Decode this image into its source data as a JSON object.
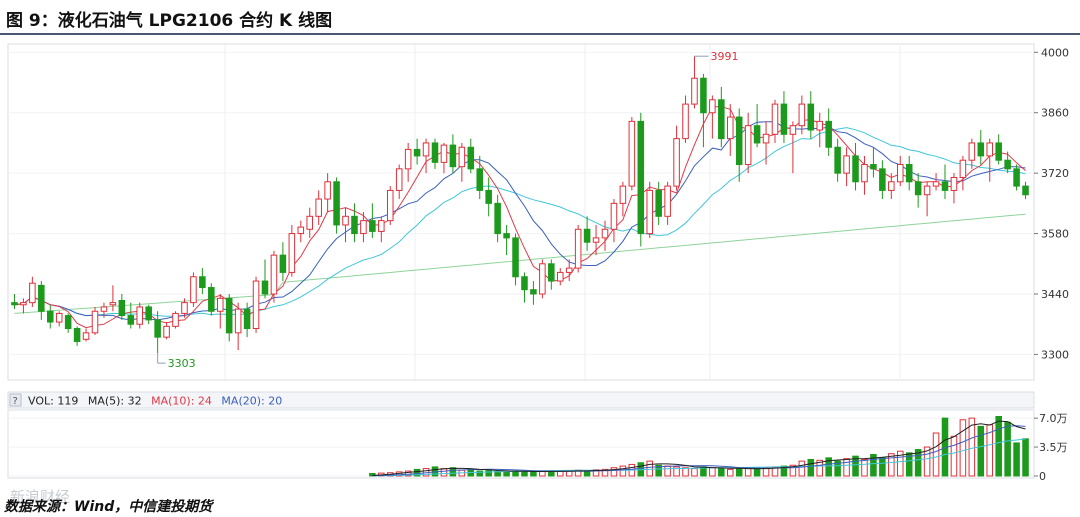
{
  "title": "图 9：液化石油气 LPG2106 合约 K 线图",
  "source": "数据来源：Wind，中信建投期货",
  "watermark": "新浪财经",
  "chart_data": [
    {
      "type": "candlestick",
      "ylim": [
        3250,
        4010
      ],
      "y_ticks": [
        "4000",
        "3860",
        "3720",
        "3580",
        "3440",
        "3300"
      ],
      "annotations": {
        "high_label": "3991",
        "high_value": 3991,
        "low_label": "3303",
        "low_value": 3303
      },
      "colors": {
        "up": "#e0303a",
        "down": "#1d9a1d",
        "ma5": "#e03a48",
        "ma10": "#3b5fc0",
        "ma20": "#3fc6d8",
        "ma60": "#8fd49a"
      },
      "ohlc": [
        [
          3420,
          3440,
          3405,
          3415
        ],
        [
          3415,
          3430,
          3395,
          3420
        ],
        [
          3420,
          3480,
          3410,
          3465
        ],
        [
          3460,
          3470,
          3380,
          3400
        ],
        [
          3400,
          3415,
          3360,
          3375
        ],
        [
          3375,
          3400,
          3365,
          3395
        ],
        [
          3390,
          3395,
          3350,
          3360
        ],
        [
          3360,
          3365,
          3320,
          3330
        ],
        [
          3335,
          3360,
          3330,
          3350
        ],
        [
          3350,
          3410,
          3345,
          3400
        ],
        [
          3400,
          3420,
          3385,
          3410
        ],
        [
          3415,
          3460,
          3400,
          3420
        ],
        [
          3425,
          3440,
          3380,
          3390
        ],
        [
          3390,
          3420,
          3360,
          3370
        ],
        [
          3370,
          3420,
          3360,
          3410
        ],
        [
          3410,
          3415,
          3370,
          3380
        ],
        [
          3380,
          3400,
          3303,
          3340
        ],
        [
          3340,
          3375,
          3335,
          3365
        ],
        [
          3365,
          3400,
          3360,
          3395
        ],
        [
          3395,
          3430,
          3385,
          3420
        ],
        [
          3420,
          3490,
          3410,
          3480
        ],
        [
          3480,
          3500,
          3440,
          3455
        ],
        [
          3455,
          3465,
          3390,
          3400
        ],
        [
          3400,
          3440,
          3360,
          3430
        ],
        [
          3430,
          3440,
          3330,
          3350
        ],
        [
          3350,
          3420,
          3310,
          3405
        ],
        [
          3405,
          3420,
          3340,
          3360
        ],
        [
          3360,
          3480,
          3350,
          3470
        ],
        [
          3470,
          3520,
          3430,
          3440
        ],
        [
          3440,
          3540,
          3420,
          3530
        ],
        [
          3530,
          3560,
          3470,
          3490
        ],
        [
          3490,
          3600,
          3480,
          3580
        ],
        [
          3580,
          3610,
          3560,
          3595
        ],
        [
          3590,
          3640,
          3570,
          3620
        ],
        [
          3620,
          3680,
          3600,
          3660
        ],
        [
          3660,
          3720,
          3630,
          3700
        ],
        [
          3700,
          3710,
          3580,
          3600
        ],
        [
          3600,
          3640,
          3560,
          3620
        ],
        [
          3620,
          3650,
          3560,
          3580
        ],
        [
          3580,
          3630,
          3560,
          3610
        ],
        [
          3610,
          3650,
          3570,
          3585
        ],
        [
          3585,
          3620,
          3560,
          3610
        ],
        [
          3610,
          3690,
          3600,
          3680
        ],
        [
          3680,
          3740,
          3660,
          3730
        ],
        [
          3730,
          3790,
          3700,
          3775
        ],
        [
          3775,
          3800,
          3740,
          3760
        ],
        [
          3760,
          3800,
          3720,
          3790
        ],
        [
          3790,
          3800,
          3730,
          3745
        ],
        [
          3745,
          3790,
          3720,
          3785
        ],
        [
          3785,
          3810,
          3720,
          3735
        ],
        [
          3735,
          3790,
          3700,
          3780
        ],
        [
          3780,
          3800,
          3720,
          3730
        ],
        [
          3730,
          3760,
          3660,
          3680
        ],
        [
          3680,
          3710,
          3620,
          3650
        ],
        [
          3650,
          3670,
          3560,
          3580
        ],
        [
          3580,
          3600,
          3530,
          3570
        ],
        [
          3570,
          3580,
          3460,
          3480
        ],
        [
          3480,
          3490,
          3420,
          3450
        ],
        [
          3450,
          3470,
          3415,
          3440
        ],
        [
          3440,
          3520,
          3430,
          3510
        ],
        [
          3510,
          3520,
          3450,
          3470
        ],
        [
          3470,
          3500,
          3460,
          3490
        ],
        [
          3490,
          3520,
          3470,
          3500
        ],
        [
          3500,
          3600,
          3490,
          3590
        ],
        [
          3590,
          3620,
          3540,
          3560
        ],
        [
          3560,
          3600,
          3530,
          3570
        ],
        [
          3570,
          3610,
          3540,
          3590
        ],
        [
          3590,
          3660,
          3560,
          3650
        ],
        [
          3650,
          3700,
          3620,
          3690
        ],
        [
          3690,
          3850,
          3680,
          3840
        ],
        [
          3840,
          3860,
          3550,
          3580
        ],
        [
          3580,
          3700,
          3570,
          3680
        ],
        [
          3680,
          3700,
          3600,
          3620
        ],
        [
          3620,
          3700,
          3600,
          3690
        ],
        [
          3690,
          3830,
          3680,
          3800
        ],
        [
          3800,
          3900,
          3790,
          3880
        ],
        [
          3880,
          3991,
          3870,
          3940
        ],
        [
          3940,
          3950,
          3780,
          3860
        ],
        [
          3860,
          3900,
          3800,
          3890
        ],
        [
          3890,
          3920,
          3780,
          3800
        ],
        [
          3800,
          3880,
          3760,
          3850
        ],
        [
          3850,
          3870,
          3700,
          3740
        ],
        [
          3740,
          3860,
          3720,
          3830
        ],
        [
          3830,
          3880,
          3780,
          3790
        ],
        [
          3790,
          3840,
          3740,
          3810
        ],
        [
          3810,
          3890,
          3790,
          3880
        ],
        [
          3880,
          3910,
          3790,
          3810
        ],
        [
          3810,
          3840,
          3720,
          3830
        ],
        [
          3830,
          3900,
          3810,
          3880
        ],
        [
          3880,
          3910,
          3800,
          3820
        ],
        [
          3820,
          3860,
          3780,
          3840
        ],
        [
          3840,
          3870,
          3760,
          3780
        ],
        [
          3780,
          3800,
          3700,
          3720
        ],
        [
          3720,
          3780,
          3690,
          3760
        ],
        [
          3760,
          3790,
          3680,
          3700
        ],
        [
          3700,
          3760,
          3670,
          3740
        ],
        [
          3740,
          3780,
          3710,
          3730
        ],
        [
          3730,
          3750,
          3660,
          3680
        ],
        [
          3680,
          3720,
          3660,
          3700
        ],
        [
          3700,
          3760,
          3690,
          3740
        ],
        [
          3740,
          3760,
          3680,
          3700
        ],
        [
          3700,
          3720,
          3640,
          3670
        ],
        [
          3670,
          3700,
          3620,
          3690
        ],
        [
          3690,
          3720,
          3680,
          3700
        ],
        [
          3700,
          3740,
          3660,
          3680
        ],
        [
          3680,
          3720,
          3650,
          3710
        ],
        [
          3710,
          3760,
          3680,
          3750
        ],
        [
          3750,
          3800,
          3730,
          3790
        ],
        [
          3790,
          3820,
          3740,
          3760
        ],
        [
          3760,
          3800,
          3700,
          3790
        ],
        [
          3790,
          3810,
          3740,
          3750
        ],
        [
          3750,
          3770,
          3720,
          3730
        ],
        [
          3730,
          3740,
          3680,
          3690
        ],
        [
          3690,
          3700,
          3660,
          3670
        ]
      ]
    },
    {
      "type": "bar",
      "ylim": [
        0,
        75000
      ],
      "y_ticks": [
        "7.0万",
        "3.5万",
        "0"
      ],
      "legend": {
        "vol": "VOL: 119",
        "ma5": "MA(5): 32",
        "ma10": "MA(10): 24",
        "ma20": "MA(20): 20"
      },
      "volume": [
        0,
        0,
        0,
        0,
        0,
        0,
        0,
        0,
        0,
        0,
        0,
        0,
        0,
        0,
        0,
        0,
        0,
        0,
        0,
        0,
        0,
        0,
        0,
        0,
        0,
        0,
        0,
        0,
        0,
        0,
        0,
        0,
        0,
        0,
        0,
        0,
        0,
        0,
        0,
        0,
        3000,
        3500,
        4000,
        5000,
        6000,
        8000,
        9000,
        11000,
        9000,
        10000,
        7000,
        8000,
        6000,
        6500,
        5500,
        5000,
        6000,
        5500,
        5000,
        6000,
        5500,
        6000,
        6500,
        7000,
        6000,
        7500,
        8000,
        10000,
        12000,
        14000,
        16000,
        18000,
        13000,
        12000,
        11000,
        10000,
        9000,
        11000,
        10000,
        9000,
        8000,
        8500,
        9000,
        9500,
        10000,
        11000,
        12000,
        13000,
        18000,
        20000,
        19000,
        22000,
        18000,
        21000,
        24000,
        20000,
        26000,
        22000,
        27000,
        30000,
        28000,
        32000,
        35000,
        52000,
        70000,
        48000,
        68000,
        70000,
        60000,
        62000,
        72000,
        65000,
        40000,
        45000
      ]
    }
  ]
}
